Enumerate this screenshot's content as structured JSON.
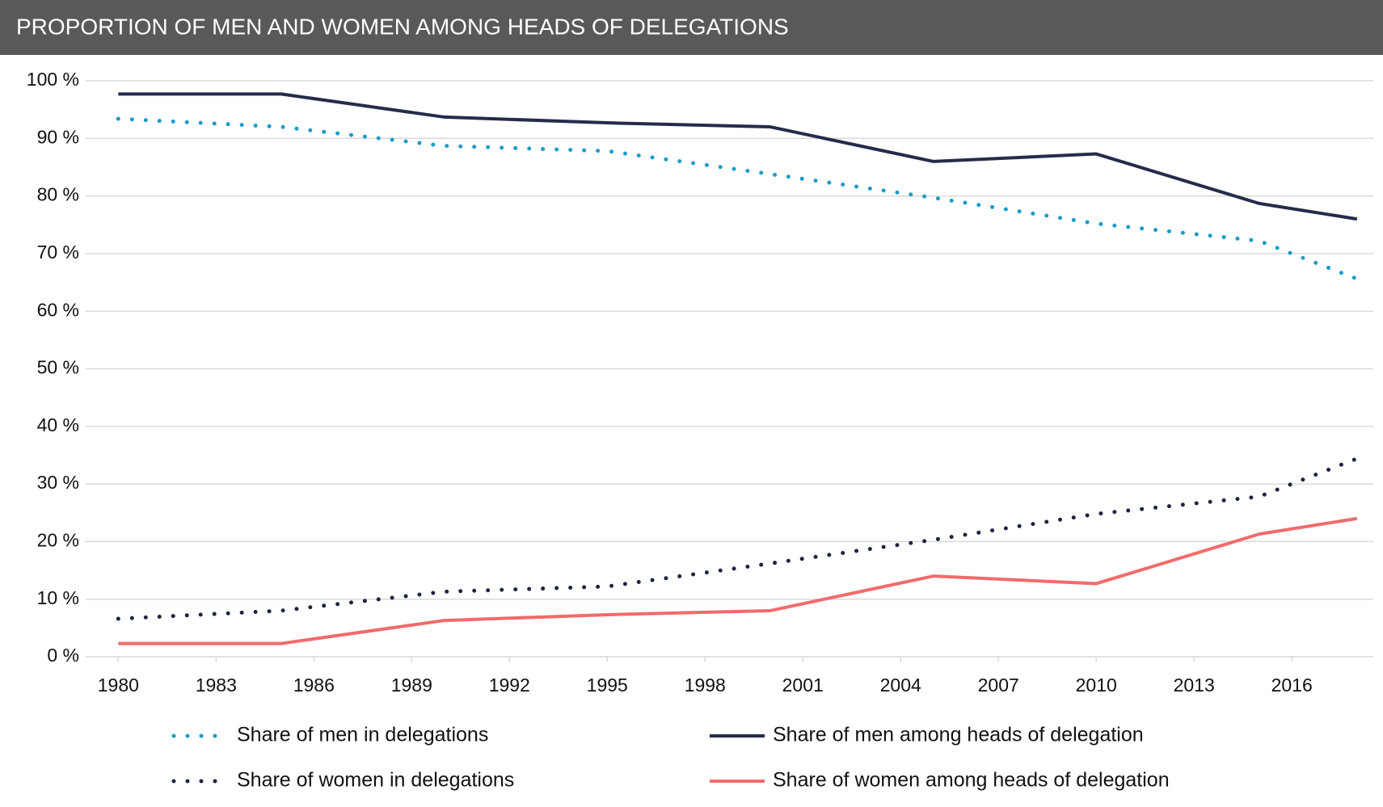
{
  "chart_data": {
    "type": "line",
    "title": "PROPORTION OF MEN AND WOMEN AMONG HEADS OF DELEGATIONS",
    "x": [
      1980,
      1985,
      1990,
      1995,
      2000,
      2005,
      2010,
      2015,
      2018
    ],
    "series": [
      {
        "name": "Share of men in delegations",
        "color": "#1a9bc9",
        "style": "dotted",
        "values": [
          93.4,
          92.0,
          88.7,
          87.8,
          83.8,
          79.7,
          75.2,
          72.2,
          65.6
        ]
      },
      {
        "name": "Share of men among heads of delegation",
        "color": "#262b4a",
        "style": "solid",
        "values": [
          97.7,
          97.7,
          93.7,
          92.7,
          92.0,
          86.0,
          87.3,
          78.7,
          76.0
        ]
      },
      {
        "name": "Share of women in delegations",
        "color": "#1e2340",
        "style": "dotted",
        "values": [
          6.6,
          8.0,
          11.3,
          12.2,
          16.2,
          20.3,
          24.8,
          27.8,
          34.4
        ]
      },
      {
        "name": "Share of women among heads of delegation",
        "color": "#f26b6b",
        "style": "solid",
        "values": [
          2.3,
          2.3,
          6.3,
          7.3,
          8.0,
          14.0,
          12.7,
          21.3,
          24.0
        ]
      }
    ],
    "xlim": [
      1979,
      2018.5
    ],
    "xticks": [
      1980,
      1983,
      1986,
      1989,
      1992,
      1995,
      1998,
      2001,
      2004,
      2007,
      2010,
      2013,
      2016
    ],
    "ylim": [
      0,
      100
    ],
    "yticks": [
      {
        "value": 0,
        "label": "0 %"
      },
      {
        "value": 10,
        "label": "10 %"
      },
      {
        "value": 20,
        "label": "20 %"
      },
      {
        "value": 30,
        "label": "30 %"
      },
      {
        "value": 40,
        "label": "40 %"
      },
      {
        "value": 50,
        "label": "50 %"
      },
      {
        "value": 60,
        "label": "60 %"
      },
      {
        "value": 70,
        "label": "70 %"
      },
      {
        "value": 80,
        "label": "80 %"
      },
      {
        "value": 90,
        "label": "90 %"
      },
      {
        "value": 100,
        "label": "100 %"
      }
    ],
    "grid": true
  }
}
